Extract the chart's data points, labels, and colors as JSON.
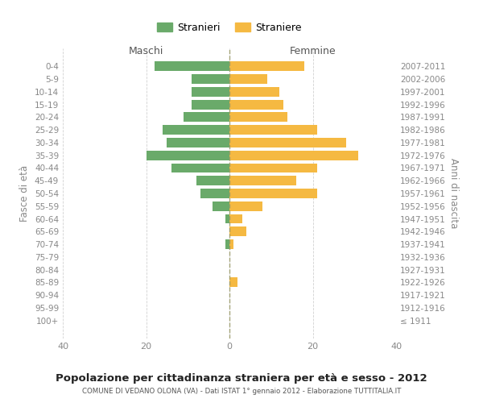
{
  "age_groups": [
    "0-4",
    "5-9",
    "10-14",
    "15-19",
    "20-24",
    "25-29",
    "30-34",
    "35-39",
    "40-44",
    "45-49",
    "50-54",
    "55-59",
    "60-64",
    "65-69",
    "70-74",
    "75-79",
    "80-84",
    "85-89",
    "90-94",
    "95-99",
    "100+"
  ],
  "birth_years": [
    "2007-2011",
    "2002-2006",
    "1997-2001",
    "1992-1996",
    "1987-1991",
    "1982-1986",
    "1977-1981",
    "1972-1976",
    "1967-1971",
    "1962-1966",
    "1957-1961",
    "1952-1956",
    "1947-1951",
    "1942-1946",
    "1937-1941",
    "1932-1936",
    "1927-1931",
    "1922-1926",
    "1917-1921",
    "1912-1916",
    "≤ 1911"
  ],
  "males": [
    18,
    9,
    9,
    9,
    11,
    16,
    15,
    20,
    14,
    8,
    7,
    4,
    1,
    0,
    1,
    0,
    0,
    0,
    0,
    0,
    0
  ],
  "females": [
    18,
    9,
    12,
    13,
    14,
    21,
    28,
    31,
    21,
    16,
    21,
    8,
    3,
    4,
    1,
    0,
    0,
    2,
    0,
    0,
    0
  ],
  "male_color": "#6aaa6a",
  "female_color": "#f5b942",
  "background_color": "#ffffff",
  "grid_color": "#cccccc",
  "title": "Popolazione per cittadinanza straniera per età e sesso - 2012",
  "subtitle": "COMUNE DI VEDANO OLONA (VA) - Dati ISTAT 1° gennaio 2012 - Elaborazione TUTTITALIA.IT",
  "xlabel_left": "Maschi",
  "xlabel_right": "Femmine",
  "ylabel_left": "Fasce di età",
  "ylabel_right": "Anni di nascita",
  "xlim": [
    -40,
    40
  ],
  "legend_stranieri": "Stranieri",
  "legend_straniere": "Straniere",
  "tick_color": "#888888",
  "bar_height": 0.75
}
